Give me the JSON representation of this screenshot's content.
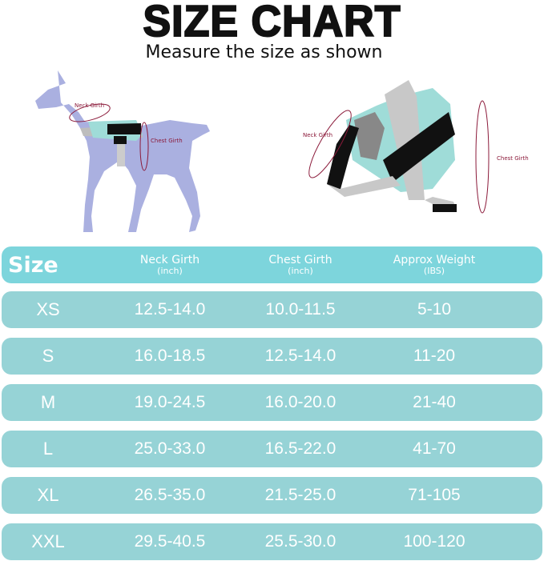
{
  "title": "SIZE CHART",
  "subtitle": "Measure the size as shown",
  "illustration": {
    "dog_neck_label": "Neck Girth",
    "dog_chest_label": "Chest Girth",
    "harness_neck_label": "Neck Girth",
    "harness_chest_label": "Chest Girth",
    "dog_color": "#aab0e0",
    "harness_color": "#9fdcd8",
    "measure_color": "#8b1a3a"
  },
  "table": {
    "header": {
      "size": "Size",
      "neck": "Neck Girth",
      "neck_unit": "(inch)",
      "chest": "Chest Girth",
      "chest_unit": "(inch)",
      "weight": "Approx Weight",
      "weight_unit": "(IBS)"
    },
    "rows": [
      {
        "size": "XS",
        "neck": "12.5-14.0",
        "chest": "10.0-11.5",
        "weight": "5-10"
      },
      {
        "size": "S",
        "neck": "16.0-18.5",
        "chest": "12.5-14.0",
        "weight": "11-20"
      },
      {
        "size": "M",
        "neck": "19.0-24.5",
        "chest": "16.0-20.0",
        "weight": "21-40"
      },
      {
        "size": "L",
        "neck": "25.0-33.0",
        "chest": "16.5-22.0",
        "weight": "41-70"
      },
      {
        "size": "XL",
        "neck": "26.5-35.0",
        "chest": "21.5-25.0",
        "weight": "71-105"
      },
      {
        "size": "XXL",
        "neck": "29.5-40.5",
        "chest": "25.5-30.0",
        "weight": "100-120"
      }
    ],
    "header_color": "#7dd5dc",
    "row_color": "#96d3d6"
  }
}
